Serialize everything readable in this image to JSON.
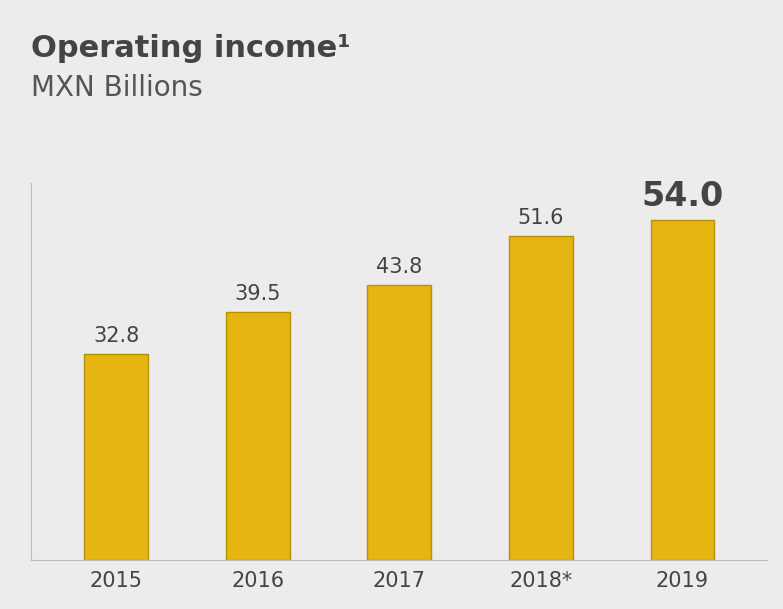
{
  "chart_data": {
    "type": "bar",
    "title": "Operating income¹",
    "subtitle": "MXN Billions",
    "categories": [
      "2015",
      "2016",
      "2017",
      "2018*",
      "2019"
    ],
    "values": [
      32.8,
      39.5,
      43.8,
      51.6,
      54.0
    ],
    "color": "#e6b512",
    "ylim": [
      0,
      60
    ],
    "yticks": [],
    "data_labels": true,
    "tick_labels": "x",
    "grid": false
  }
}
